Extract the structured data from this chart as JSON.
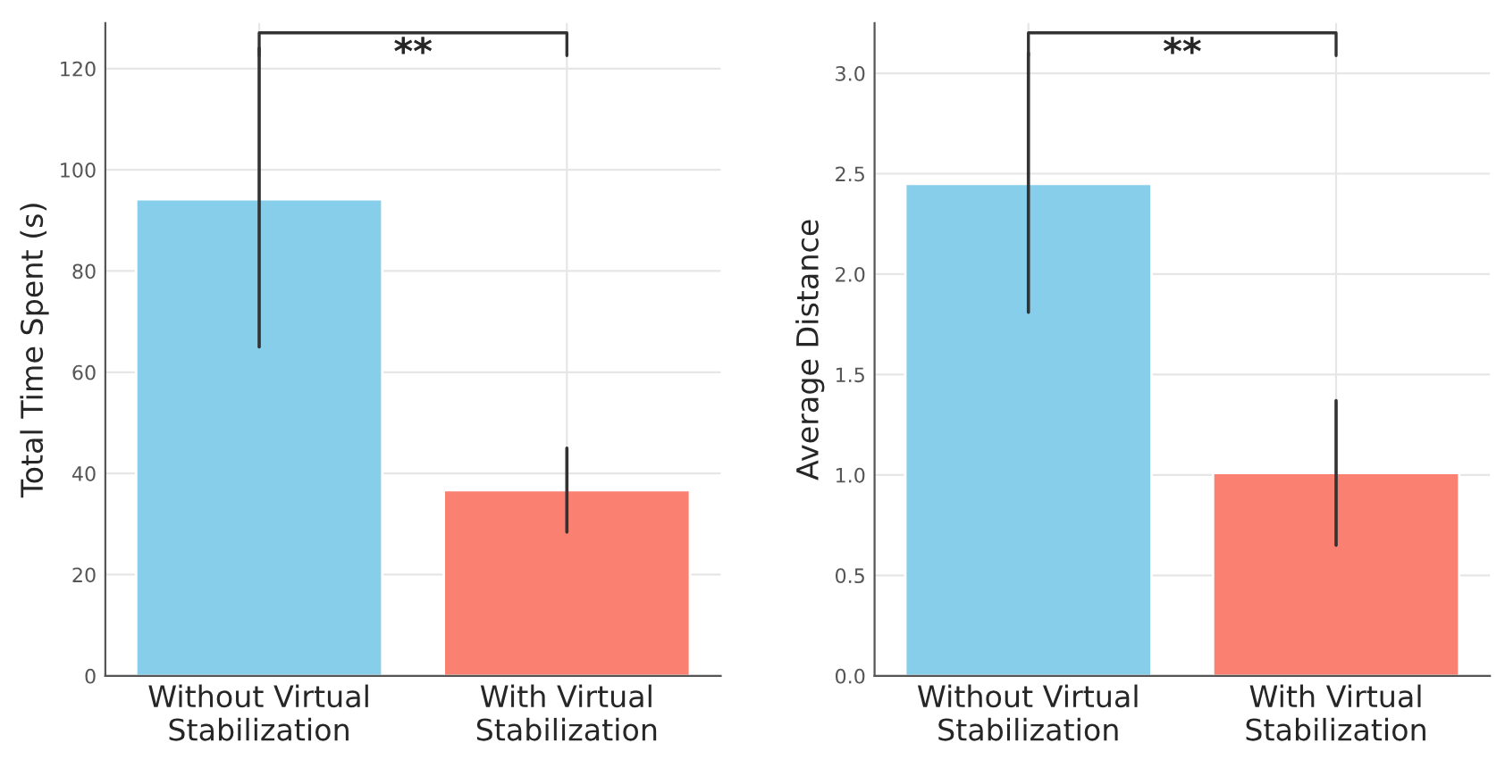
{
  "chart_data": [
    {
      "type": "bar",
      "ylabel": "Total Time Spent (s)",
      "categories": [
        "Without Virtual\nStabilization",
        "With Virtual\nStabilization"
      ],
      "values": [
        94.2,
        36.7
      ],
      "colors": [
        "#87ceeb",
        "#fa8072"
      ],
      "errors": [
        [
          65,
          124
        ],
        [
          28.4,
          45
        ]
      ],
      "ylim": [
        0,
        129
      ],
      "yticks": [
        0,
        20,
        40,
        60,
        80,
        100,
        120
      ],
      "grid": true,
      "annotations": [
        "**"
      ]
    },
    {
      "type": "bar",
      "ylabel": "Average Distance",
      "categories": [
        "Without Virtual\nStabilization",
        "With Virtual\nStabilization"
      ],
      "values": [
        2.45,
        1.01
      ],
      "colors": [
        "#87ceeb",
        "#fa8072"
      ],
      "errors": [
        [
          1.81,
          3.1
        ],
        [
          0.65,
          1.37
        ]
      ],
      "ylim": [
        0,
        3.25
      ],
      "yticks": [
        {
          "value": 0,
          "label": "0.0"
        },
        0.5,
        {
          "value": 1,
          "label": "1.0"
        },
        1.5,
        {
          "value": 2,
          "label": "2.0"
        },
        2.5,
        {
          "value": 3,
          "label": "3.0"
        }
      ],
      "grid": true,
      "annotations": [
        "**"
      ]
    }
  ]
}
